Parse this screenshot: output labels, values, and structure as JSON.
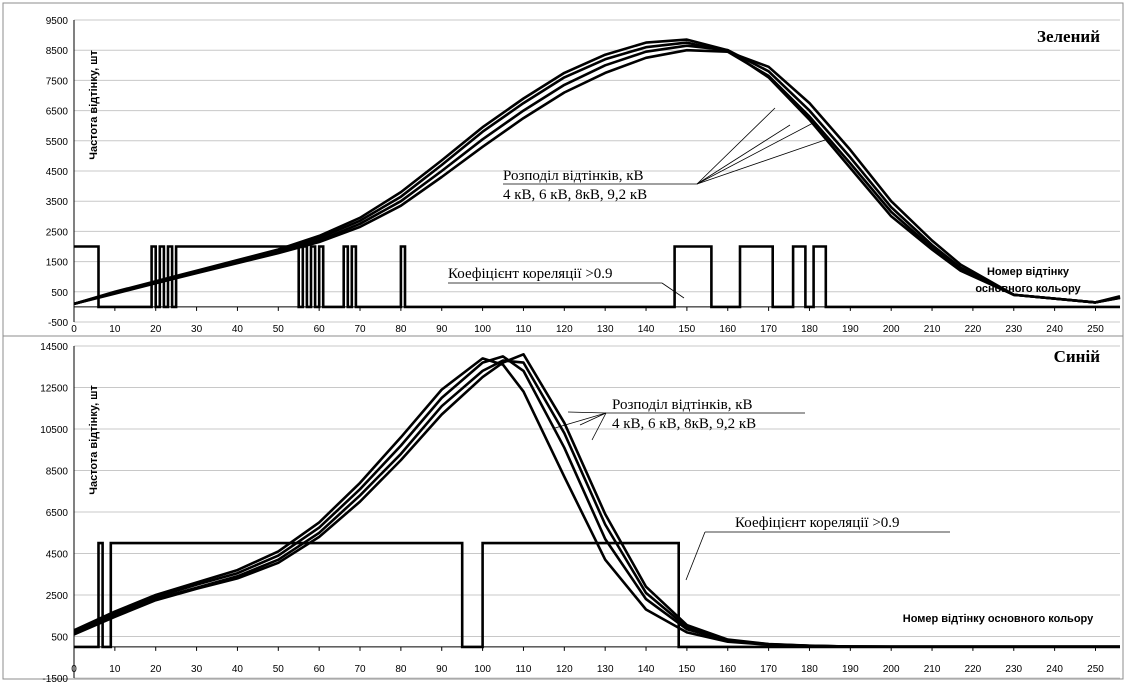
{
  "chart_data": [
    {
      "type": "line",
      "title": "Зелений",
      "ylabel": "Частота відтінку, шт",
      "xlabel": "Номер відтінку основного кольору",
      "xlim": [
        0,
        256
      ],
      "ylim": [
        -500,
        9500
      ],
      "x_ticks": [
        0,
        10,
        20,
        30,
        40,
        50,
        60,
        70,
        80,
        90,
        100,
        110,
        120,
        130,
        140,
        150,
        160,
        170,
        180,
        190,
        200,
        210,
        220,
        230,
        240,
        250
      ],
      "y_ticks": [
        -500,
        500,
        1500,
        2500,
        3500,
        4500,
        5500,
        6500,
        7500,
        8500,
        9500
      ],
      "grid": true,
      "annotations": {
        "distribution_line1": "Розподіл відтінків, кВ",
        "distribution_line2": "4 кВ, 6 кВ, 8кВ, 9,2 кВ",
        "correlation": "Коефіцієнт кореляції >0.9",
        "xnote_line1": "Номер відтінку",
        "xnote_line2": "основного кольору"
      },
      "series": [
        {
          "x": [
            0,
            10,
            20,
            30,
            40,
            50,
            60,
            70,
            80,
            90,
            100,
            110,
            120,
            130,
            140,
            150,
            160,
            170,
            180,
            190,
            200,
            210,
            217,
            230,
            250,
            256
          ],
          "values": [
            100,
            500,
            850,
            1200,
            1550,
            1900,
            2350,
            2950,
            3800,
            4850,
            5950,
            6900,
            7750,
            8350,
            8750,
            8850,
            8500,
            7600,
            6200,
            4600,
            3000,
            1900,
            1200,
            400,
            150,
            350
          ]
        },
        {
          "x": [
            0,
            10,
            20,
            30,
            40,
            50,
            60,
            70,
            80,
            90,
            100,
            110,
            120,
            130,
            140,
            150,
            160,
            170,
            180,
            190,
            200,
            210,
            217,
            230,
            250,
            256
          ],
          "values": [
            100,
            480,
            820,
            1170,
            1510,
            1860,
            2280,
            2850,
            3650,
            4700,
            5800,
            6750,
            7600,
            8200,
            8600,
            8750,
            8450,
            7650,
            6300,
            4750,
            3150,
            1950,
            1250,
            400,
            150,
            300
          ]
        },
        {
          "x": [
            0,
            10,
            20,
            30,
            40,
            50,
            60,
            70,
            80,
            90,
            100,
            110,
            120,
            130,
            140,
            150,
            160,
            170,
            180,
            190,
            200,
            210,
            217,
            230,
            250,
            256
          ],
          "values": [
            100,
            460,
            800,
            1150,
            1480,
            1820,
            2200,
            2750,
            3500,
            4500,
            5550,
            6500,
            7350,
            8000,
            8450,
            8650,
            8500,
            7800,
            6500,
            4950,
            3300,
            2050,
            1300,
            400,
            150,
            320
          ]
        },
        {
          "x": [
            0,
            10,
            20,
            30,
            40,
            50,
            60,
            70,
            80,
            90,
            100,
            110,
            120,
            130,
            140,
            150,
            160,
            170,
            180,
            190,
            200,
            210,
            217,
            230,
            250,
            256
          ],
          "values": [
            100,
            440,
            780,
            1120,
            1450,
            1780,
            2150,
            2650,
            3350,
            4300,
            5300,
            6250,
            7100,
            7750,
            8250,
            8500,
            8450,
            7950,
            6750,
            5200,
            3500,
            2200,
            1400,
            400,
            150,
            300
          ]
        }
      ],
      "correlation_segments": [
        [
          0,
          6,
          2000
        ],
        [
          6,
          19,
          0
        ],
        [
          19,
          20,
          2000
        ],
        [
          20,
          21,
          0
        ],
        [
          21,
          22,
          2000
        ],
        [
          22,
          23,
          0
        ],
        [
          23,
          24,
          2000
        ],
        [
          24,
          25,
          0
        ],
        [
          25,
          26,
          2000
        ],
        [
          26,
          55,
          2000
        ],
        [
          55,
          56,
          0
        ],
        [
          56,
          57,
          2000
        ],
        [
          57,
          58,
          0
        ],
        [
          58,
          59,
          2000
        ],
        [
          59,
          60,
          0
        ],
        [
          60,
          61,
          2000
        ],
        [
          61,
          66,
          0
        ],
        [
          66,
          67,
          2000
        ],
        [
          67,
          68,
          0
        ],
        [
          68,
          69,
          2000
        ],
        [
          69,
          80,
          0
        ],
        [
          80,
          81,
          2000
        ],
        [
          81,
          147,
          0
        ],
        [
          147,
          156,
          2000
        ],
        [
          156,
          163,
          0
        ],
        [
          163,
          165,
          2000
        ],
        [
          165,
          171,
          2000
        ],
        [
          171,
          176,
          0
        ],
        [
          176,
          179,
          2000
        ],
        [
          179,
          181,
          0
        ],
        [
          181,
          184,
          2000
        ],
        [
          184,
          256,
          0
        ]
      ]
    },
    {
      "type": "line",
      "title": "Синій",
      "ylabel": "Частота відтінку, шт",
      "xlabel": "Номер відтінку основного кольору",
      "xlim": [
        0,
        256
      ],
      "ylim": [
        -1500,
        14500
      ],
      "x_ticks": [
        0,
        10,
        20,
        30,
        40,
        50,
        60,
        70,
        80,
        90,
        100,
        110,
        120,
        130,
        140,
        150,
        160,
        170,
        180,
        190,
        200,
        210,
        220,
        230,
        240,
        250
      ],
      "y_ticks": [
        -1500,
        500,
        2500,
        4500,
        6500,
        8500,
        10500,
        12500,
        14500
      ],
      "grid": true,
      "annotations": {
        "distribution_line1": "Розподіл відтінків, кВ",
        "distribution_line2": "4 кВ, 6 кВ, 8кВ, 9,2 кВ",
        "correlation": "Коефіцієнт кореляції >0.9",
        "xnote_line1": "Номер відтінку основного кольору"
      },
      "series": [
        {
          "x": [
            0,
            10,
            20,
            30,
            40,
            50,
            60,
            70,
            80,
            90,
            100,
            105,
            110,
            120,
            130,
            140,
            150,
            160,
            170,
            180,
            190,
            200,
            256
          ],
          "values": [
            800,
            1700,
            2500,
            3100,
            3700,
            4600,
            6000,
            7900,
            10100,
            12400,
            13900,
            13600,
            12300,
            8200,
            4200,
            1800,
            700,
            250,
            100,
            40,
            20,
            10,
            10
          ]
        },
        {
          "x": [
            0,
            10,
            20,
            30,
            40,
            50,
            60,
            70,
            80,
            90,
            100,
            105,
            110,
            120,
            130,
            140,
            150,
            160,
            170,
            180,
            190,
            200,
            256
          ],
          "values": [
            700,
            1600,
            2400,
            3000,
            3550,
            4400,
            5750,
            7600,
            9700,
            12000,
            13700,
            14000,
            13300,
            9600,
            5200,
            2300,
            850,
            300,
            120,
            50,
            20,
            10,
            10
          ]
        },
        {
          "x": [
            0,
            10,
            20,
            30,
            40,
            50,
            60,
            70,
            80,
            90,
            100,
            105,
            110,
            120,
            130,
            140,
            150,
            160,
            170,
            180,
            190,
            200,
            256
          ],
          "values": [
            650,
            1500,
            2300,
            2850,
            3400,
            4200,
            5500,
            7300,
            9300,
            11600,
            13300,
            13800,
            13700,
            10300,
            5900,
            2600,
            950,
            320,
            130,
            50,
            20,
            10,
            10
          ]
        },
        {
          "x": [
            0,
            10,
            20,
            30,
            40,
            50,
            60,
            70,
            80,
            90,
            100,
            105,
            110,
            120,
            130,
            140,
            150,
            160,
            170,
            180,
            190,
            200,
            256
          ],
          "values": [
            600,
            1450,
            2250,
            2800,
            3300,
            4050,
            5300,
            7000,
            9000,
            11200,
            13000,
            13700,
            14100,
            10800,
            6400,
            2900,
            1050,
            350,
            140,
            55,
            20,
            10,
            10
          ]
        }
      ],
      "correlation_segments": [
        [
          0,
          6,
          0
        ],
        [
          6,
          7,
          5000
        ],
        [
          7,
          9,
          0
        ],
        [
          9,
          11,
          5000
        ],
        [
          11,
          95,
          5000
        ],
        [
          95,
          100,
          0
        ],
        [
          100,
          148,
          5000
        ],
        [
          148,
          256,
          0
        ]
      ]
    }
  ]
}
